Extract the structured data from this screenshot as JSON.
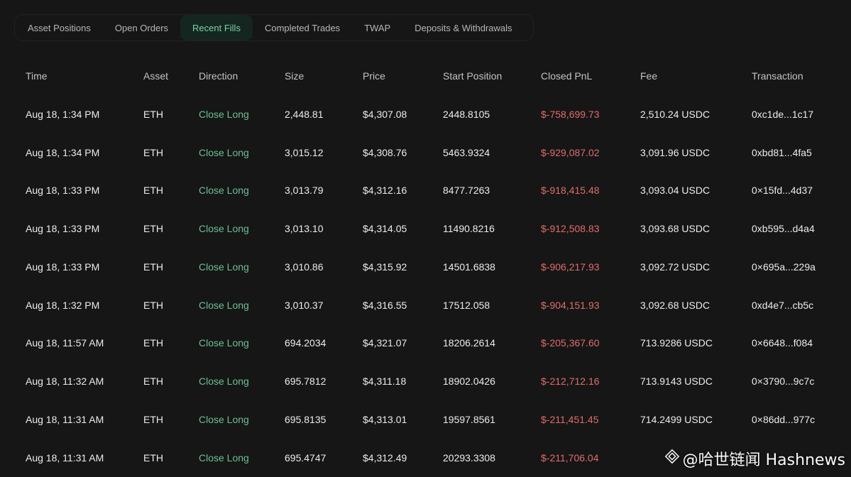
{
  "tabs": [
    "Asset Positions",
    "Open Orders",
    "Recent Fills",
    "Completed Trades",
    "TWAP",
    "Deposits & Withdrawals"
  ],
  "active_tab": "Recent Fills",
  "columns": [
    "Time",
    "Asset",
    "Direction",
    "Size",
    "Price",
    "Start Position",
    "Closed PnL",
    "Fee",
    "Transaction"
  ],
  "rows": [
    {
      "time": "Aug 18, 1:34 PM",
      "asset": "ETH",
      "direction": "Close Long",
      "size": "2,448.81",
      "price": "$4,307.08",
      "start": "2448.8105",
      "pnl": "$-758,699.73",
      "fee": "2,510.24 USDC",
      "tx": "0xc1de...1c17"
    },
    {
      "time": "Aug 18, 1:34 PM",
      "asset": "ETH",
      "direction": "Close Long",
      "size": "3,015.12",
      "price": "$4,308.76",
      "start": "5463.9324",
      "pnl": "$-929,087.02",
      "fee": "3,091.96 USDC",
      "tx": "0xbd81...4fa5"
    },
    {
      "time": "Aug 18, 1:33 PM",
      "asset": "ETH",
      "direction": "Close Long",
      "size": "3,013.79",
      "price": "$4,312.16",
      "start": "8477.7263",
      "pnl": "$-918,415.48",
      "fee": "3,093.04 USDC",
      "tx": "0×15fd...4d37"
    },
    {
      "time": "Aug 18, 1:33 PM",
      "asset": "ETH",
      "direction": "Close Long",
      "size": "3,013.10",
      "price": "$4,314.05",
      "start": "11490.8216",
      "pnl": "$-912,508.83",
      "fee": "3,093.68 USDC",
      "tx": "0xb595...d4a4"
    },
    {
      "time": "Aug 18, 1:33 PM",
      "asset": "ETH",
      "direction": "Close Long",
      "size": "3,010.86",
      "price": "$4,315.92",
      "start": "14501.6838",
      "pnl": "$-906,217.93",
      "fee": "3,092.72 USDC",
      "tx": "0×695a...229a"
    },
    {
      "time": "Aug 18, 1:32 PM",
      "asset": "ETH",
      "direction": "Close Long",
      "size": "3,010.37",
      "price": "$4,316.55",
      "start": "17512.058",
      "pnl": "$-904,151.93",
      "fee": "3,092.68 USDC",
      "tx": "0xd4e7...cb5c"
    },
    {
      "time": "Aug 18, 11:57 AM",
      "asset": "ETH",
      "direction": "Close Long",
      "size": "694.2034",
      "price": "$4,321.07",
      "start": "18206.2614",
      "pnl": "$-205,367.60",
      "fee": "713.9286 USDC",
      "tx": "0×6648...f084"
    },
    {
      "time": "Aug 18, 11:32 AM",
      "asset": "ETH",
      "direction": "Close Long",
      "size": "695.7812",
      "price": "$4,311.18",
      "start": "18902.0426",
      "pnl": "$-212,712.16",
      "fee": "713.9143 USDC",
      "tx": "0×3790...9c7c"
    },
    {
      "time": "Aug 18, 11:31 AM",
      "asset": "ETH",
      "direction": "Close Long",
      "size": "695.8135",
      "price": "$4,313.01",
      "start": "19597.8561",
      "pnl": "$-211,451.45",
      "fee": "714.2499 USDC",
      "tx": "0×86dd...977c"
    },
    {
      "time": "Aug 18, 11:31 AM",
      "asset": "ETH",
      "direction": "Close Long",
      "size": "695.4747",
      "price": "$4,312.49",
      "start": "20293.3308",
      "pnl": "$-211,706.04",
      "fee": "",
      "tx": ""
    }
  ],
  "colors": {
    "background": "#161616",
    "accent_green": "#6bbf94",
    "loss_red": "#e06c6c",
    "active_tab_bg": "#14261f"
  },
  "watermark": {
    "text": "@哈世链闻 Hashnews",
    "icon": "diamond-logo-icon"
  }
}
